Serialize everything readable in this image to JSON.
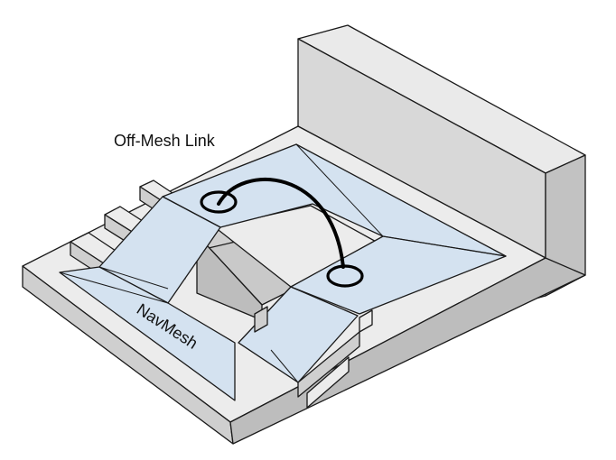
{
  "labels": {
    "off_mesh_link": "Off-Mesh Link",
    "navmesh": "NavMesh"
  },
  "colors": {
    "navmesh_fill": "#d4e2f0",
    "top_face": "#ececec",
    "front_face": "#cfcfcf",
    "side_face": "#bdbdbd",
    "wall_top": "#eaeaea",
    "wall_front": "#d8d8d8",
    "wall_side": "#c2c2c2",
    "hole_inner": "#c9c9c9",
    "outline": "#1a1a1a"
  }
}
